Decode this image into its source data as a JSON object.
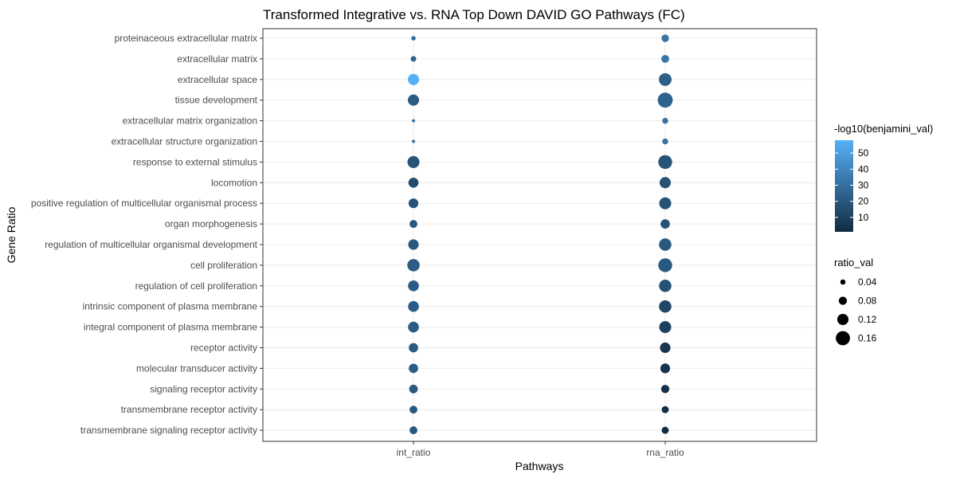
{
  "chart_data": {
    "type": "scatter",
    "title": "Transformed Integrative vs. RNA Top Down DAVID GO Pathways (FC)",
    "xlabel": "Pathways",
    "ylabel": "Gene Ratio",
    "categories_x": [
      "int_ratio",
      "rna_ratio"
    ],
    "categories_y": [
      "proteinaceous extracellular matrix",
      "extracellular matrix",
      "extracellular space",
      "tissue development",
      "extracellular matrix organization",
      "extracellular structure organization",
      "response to external stimulus",
      "locomotion",
      "positive regulation of multicellular organismal process",
      "organ morphogenesis",
      "regulation of multicellular organismal development",
      "cell proliferation",
      "regulation of cell proliferation",
      "intrinsic component of plasma membrane",
      "integral component of plasma membrane",
      "receptor activity",
      "molecular transducer activity",
      "signaling receptor activity",
      "transmembrane receptor activity",
      "transmembrane signaling receptor activity"
    ],
    "series": [
      {
        "x": "int_ratio",
        "ratio_val": [
          0.03,
          0.045,
          0.12,
          0.12,
          0.012,
          0.012,
          0.13,
          0.105,
          0.1,
          0.075,
          0.11,
          0.135,
          0.115,
          0.115,
          0.115,
          0.095,
          0.095,
          0.085,
          0.075,
          0.075
        ],
        "neg_log10_benjamini": [
          30,
          25,
          58,
          21,
          30,
          30,
          18,
          15,
          18,
          20,
          20,
          22,
          22,
          22,
          22,
          22,
          22,
          20,
          20,
          20
        ]
      },
      {
        "x": "rna_ratio",
        "ratio_val": [
          0.07,
          0.075,
          0.14,
          0.17,
          0.05,
          0.05,
          0.155,
          0.12,
          0.13,
          0.095,
          0.135,
          0.155,
          0.135,
          0.135,
          0.13,
          0.11,
          0.1,
          0.08,
          0.065,
          0.065
        ],
        "neg_log10_benjamini": [
          32,
          33,
          23,
          25,
          32,
          32,
          18,
          17,
          17,
          18,
          20,
          20,
          17,
          12,
          10,
          5,
          4,
          3,
          2,
          1
        ]
      }
    ],
    "color_legend": {
      "title": "-log10(benjamini_val)",
      "ticks": [
        "10",
        "20",
        "30",
        "40",
        "50"
      ],
      "range": [
        1,
        58
      ],
      "low_color": "#132b43",
      "high_color": "#56b1f7"
    },
    "size_legend": {
      "title": "ratio_val",
      "values": [
        0.04,
        0.08,
        0.12,
        0.16
      ],
      "labels": [
        "0.04",
        "0.08",
        "0.12",
        "0.16"
      ]
    },
    "grid": true,
    "legend_position": "right"
  }
}
